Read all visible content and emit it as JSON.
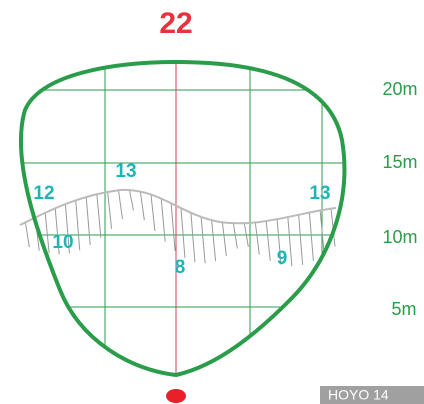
{
  "title": "22",
  "distances": [
    "20m",
    "15m",
    "10m",
    "5m"
  ],
  "slope_labels": [
    "13",
    "12",
    "13",
    "10",
    "8",
    "9"
  ],
  "footer": "HOYO 14"
}
